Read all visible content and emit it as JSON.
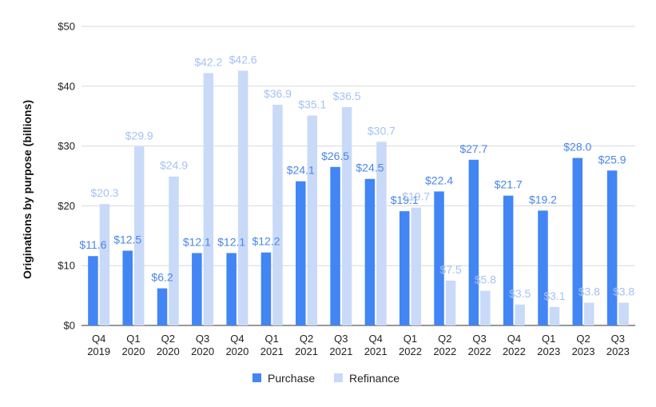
{
  "chart_data": {
    "type": "bar",
    "ylabel": "Originations by purpose (billions)",
    "xlabel": "",
    "ylim": [
      0,
      50
    ],
    "y_ticks": [
      {
        "value": 0,
        "label": "$0"
      },
      {
        "value": 10,
        "label": "$10"
      },
      {
        "value": 20,
        "label": "$20"
      },
      {
        "value": 30,
        "label": "$30"
      },
      {
        "value": 40,
        "label": "$40"
      },
      {
        "value": 50,
        "label": "$50"
      }
    ],
    "grid": true,
    "legend_position": "bottom",
    "categories": [
      [
        "Q4",
        "2019"
      ],
      [
        "Q1",
        "2020"
      ],
      [
        "Q2",
        "2020"
      ],
      [
        "Q3",
        "2020"
      ],
      [
        "Q4",
        "2020"
      ],
      [
        "Q1",
        "2021"
      ],
      [
        "Q2",
        "2021"
      ],
      [
        "Q3",
        "2021"
      ],
      [
        "Q4",
        "2021"
      ],
      [
        "Q1",
        "2022"
      ],
      [
        "Q2",
        "2022"
      ],
      [
        "Q3",
        "2022"
      ],
      [
        "Q4",
        "2022"
      ],
      [
        "Q1",
        "2023"
      ],
      [
        "Q2",
        "2023"
      ],
      [
        "Q3",
        "2023"
      ]
    ],
    "series": [
      {
        "name": "Purchase",
        "color": "#4285f4",
        "label_color": "#4a86e8",
        "values": [
          11.6,
          12.5,
          6.2,
          12.1,
          12.1,
          12.2,
          24.1,
          26.5,
          24.5,
          19.1,
          22.4,
          27.7,
          21.7,
          19.2,
          28.0,
          25.9
        ],
        "labels": [
          "$11.6",
          "$12.5",
          "$6.2",
          "$12.1",
          "$12.1",
          "$12.2",
          "$24.1",
          "$26.5",
          "$24.5",
          "$19.1",
          "$22.4",
          "$27.7",
          "$21.7",
          "$19.2",
          "$28.0",
          "$25.9"
        ]
      },
      {
        "name": "Refinance",
        "color": "#c9daf8",
        "label_color": "#a4c2f4",
        "values": [
          20.3,
          29.9,
          24.9,
          42.2,
          42.6,
          36.9,
          35.1,
          36.5,
          30.7,
          19.7,
          7.5,
          5.8,
          3.5,
          3.1,
          3.8,
          3.8
        ],
        "labels": [
          "$20.3",
          "$29.9",
          "$24.9",
          "$42.2",
          "$42.6",
          "$36.9",
          "$35.1",
          "$36.5",
          "$30.7",
          "$19.7",
          "$7.5",
          "$5.8",
          "$3.5",
          "$3.1",
          "$3.8",
          "$3.8"
        ]
      }
    ]
  }
}
